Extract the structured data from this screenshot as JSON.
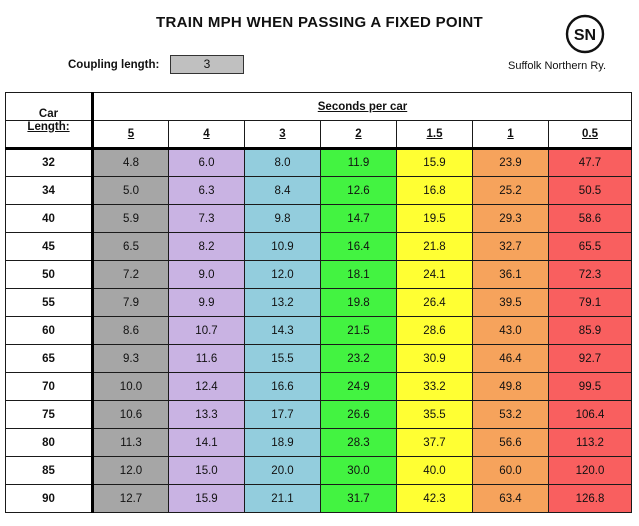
{
  "title": "TRAIN MPH WHEN PASSING A FIXED POINT",
  "coupling": {
    "label": "Coupling length:",
    "value": "3"
  },
  "brand": {
    "logo_text": "SN",
    "name": "Suffolk Northern Ry."
  },
  "table": {
    "car_label": "Car",
    "length_label": "Length:",
    "seconds_label": "Seconds per car",
    "columns": [
      {
        "label": "5",
        "color": "#a6a6a6"
      },
      {
        "label": "4",
        "color": "#c9b3e3"
      },
      {
        "label": "3",
        "color": "#93cddd"
      },
      {
        "label": "2",
        "color": "#43f341"
      },
      {
        "label": "1.5",
        "color": "#ffff33"
      },
      {
        "label": "1",
        "color": "#f6a35c"
      },
      {
        "label": "0.5",
        "color": "#f95f5f"
      }
    ],
    "rows": [
      {
        "length": "32",
        "values": [
          "4.8",
          "6.0",
          "8.0",
          "11.9",
          "15.9",
          "23.9",
          "47.7"
        ]
      },
      {
        "length": "34",
        "values": [
          "5.0",
          "6.3",
          "8.4",
          "12.6",
          "16.8",
          "25.2",
          "50.5"
        ]
      },
      {
        "length": "40",
        "values": [
          "5.9",
          "7.3",
          "9.8",
          "14.7",
          "19.5",
          "29.3",
          "58.6"
        ]
      },
      {
        "length": "45",
        "values": [
          "6.5",
          "8.2",
          "10.9",
          "16.4",
          "21.8",
          "32.7",
          "65.5"
        ]
      },
      {
        "length": "50",
        "values": [
          "7.2",
          "9.0",
          "12.0",
          "18.1",
          "24.1",
          "36.1",
          "72.3"
        ]
      },
      {
        "length": "55",
        "values": [
          "7.9",
          "9.9",
          "13.2",
          "19.8",
          "26.4",
          "39.5",
          "79.1"
        ]
      },
      {
        "length": "60",
        "values": [
          "8.6",
          "10.7",
          "14.3",
          "21.5",
          "28.6",
          "43.0",
          "85.9"
        ]
      },
      {
        "length": "65",
        "values": [
          "9.3",
          "11.6",
          "15.5",
          "23.2",
          "30.9",
          "46.4",
          "92.7"
        ]
      },
      {
        "length": "70",
        "values": [
          "10.0",
          "12.4",
          "16.6",
          "24.9",
          "33.2",
          "49.8",
          "99.5"
        ]
      },
      {
        "length": "75",
        "values": [
          "10.6",
          "13.3",
          "17.7",
          "26.6",
          "35.5",
          "53.2",
          "106.4"
        ]
      },
      {
        "length": "80",
        "values": [
          "11.3",
          "14.1",
          "18.9",
          "28.3",
          "37.7",
          "56.6",
          "113.2"
        ]
      },
      {
        "length": "85",
        "values": [
          "12.0",
          "15.0",
          "20.0",
          "30.0",
          "40.0",
          "60.0",
          "120.0"
        ]
      },
      {
        "length": "90",
        "values": [
          "12.7",
          "15.9",
          "21.1",
          "31.7",
          "42.3",
          "63.4",
          "126.8"
        ]
      }
    ]
  }
}
